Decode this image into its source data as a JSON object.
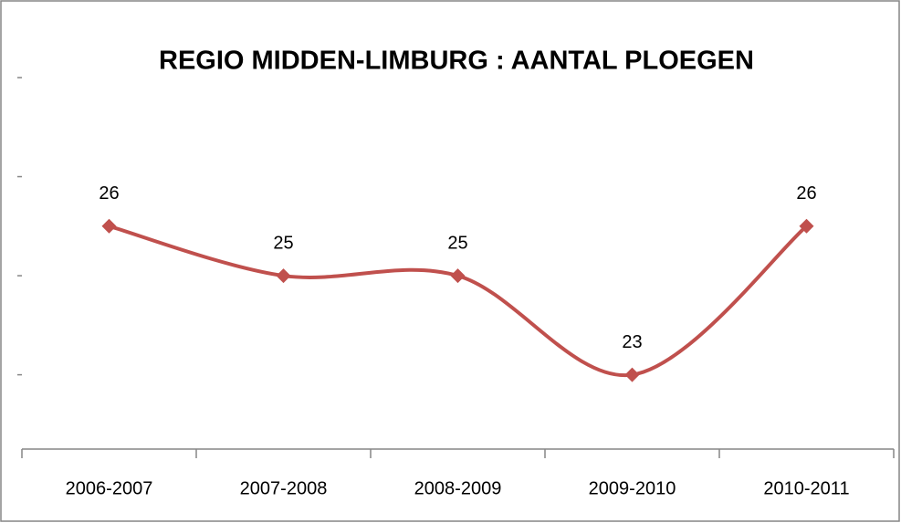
{
  "chart_data": {
    "type": "line",
    "title": "REGIO MIDDEN-LIMBURG : AANTAL PLOEGEN",
    "categories": [
      "2006-2007",
      "2007-2008",
      "2008-2009",
      "2009-2010",
      "2010-2011"
    ],
    "values": [
      26,
      25,
      25,
      23,
      26
    ],
    "color": "#c0504d",
    "smooth": true,
    "marker": "diamond",
    "ylim": [
      21.5,
      29
    ],
    "yticks": [
      23,
      25,
      27,
      29
    ],
    "grid": false
  }
}
